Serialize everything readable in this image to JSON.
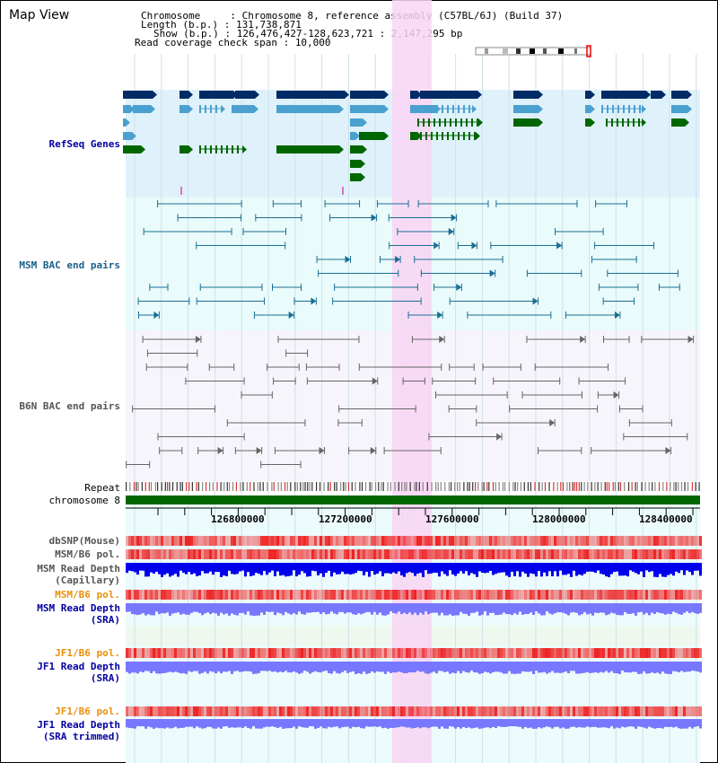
{
  "title": "Map View",
  "info": {
    "chromosome_label": "Chromosome     : ",
    "chromosome_value": "Chromosome 8, reference assembly (C57BL/6J) (Build 37)",
    "length_label": "Length (b.p.) : ",
    "length_value": "131,738,871",
    "show_label": "Show (b.p.) : ",
    "show_value": "126,476,427-128,623,721 : 2,147,295 bp",
    "coverage_label": "Read coverage check span : ",
    "coverage_value": "10,000"
  },
  "tracks": {
    "refseq": "RefSeq Genes",
    "msm_bac": "MSM BAC end pairs",
    "b6n_bac": "B6N BAC end pairs",
    "repeat": "Repeat",
    "chromosome": "chromosome 8",
    "dbsnp": "dbSNP(Mouse)",
    "msm_b6_pol_1": "MSM/B6 pol.",
    "msm_read_depth_cap_1": "MSM Read Depth",
    "msm_read_depth_cap_2": "(Capillary)",
    "msm_b6_pol_2": "MSM/B6 pol.",
    "msm_read_depth_sra_1": "MSM Read Depth",
    "msm_read_depth_sra_2": "(SRA)",
    "jf1_b6_pol_1": "JF1/B6 pol.",
    "jf1_read_depth_sra_1": "JF1 Read Depth",
    "jf1_read_depth_sra_2": "(SRA)",
    "jf1_b6_pol_2": "JF1/B6 pol.",
    "jf1_read_depth_trim_1": "JF1 Read Depth",
    "jf1_read_depth_trim_2": "(SRA trimmed)"
  },
  "axis_ticks": [
    "126800000",
    "127200000",
    "127600000",
    "128000000",
    "128400000"
  ],
  "colors": {
    "refseq_bg": "#dff2fb",
    "bac_bg": "#e9fbfb",
    "highlight": "#f9d5f3",
    "navy_gene": "#002b66",
    "light_gene": "#4aa0cf",
    "green_gene": "#006600",
    "chromosome_bar": "#006600",
    "snp_red": "#ee2222",
    "depth_blue": "#0000ee",
    "depth_light": "#7777ff"
  }
}
